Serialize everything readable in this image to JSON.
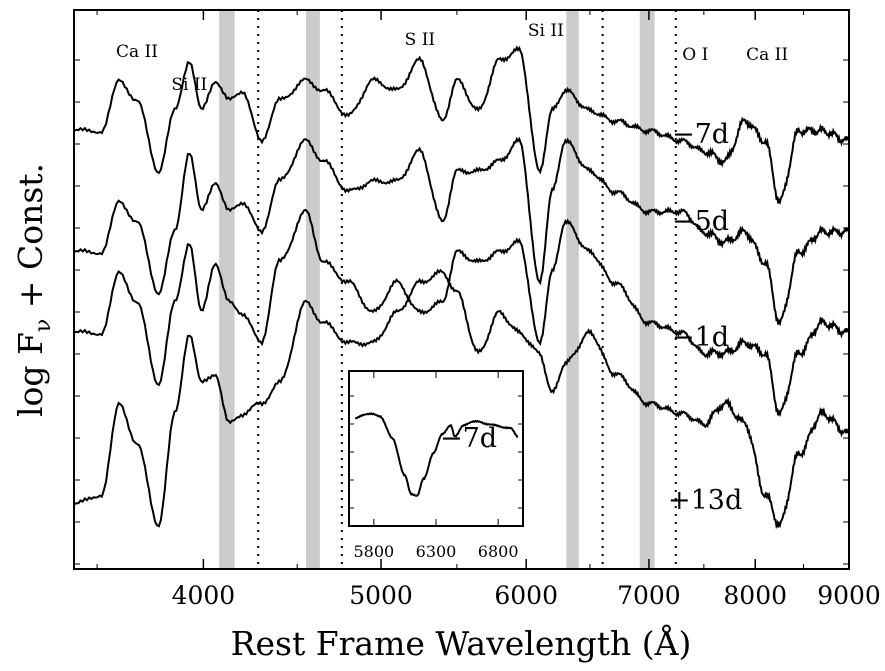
{
  "chart_data": {
    "type": "line",
    "xlabel": "Rest Frame Wavelength (Å)",
    "ylabel": "log F",
    "ylabel_subscript": "ν",
    "ylabel_suffix": " + Const.",
    "xlim": [
      3400,
      9000
    ],
    "xscale": "log",
    "xticks": [
      {
        "value": 4000,
        "label": "4000"
      },
      {
        "value": 5000,
        "label": "5000"
      },
      {
        "value": 6000,
        "label": "6000"
      },
      {
        "value": 7000,
        "label": "7000"
      },
      {
        "value": 8000,
        "label": "8000"
      },
      {
        "value": 9000,
        "label": "9000"
      }
    ],
    "grey_bands": [
      [
        4080,
        4160
      ],
      [
        4550,
        4630
      ],
      [
        6310,
        6410
      ],
      [
        6920,
        7050
      ]
    ],
    "dotted_lines": [
      4285,
      4760,
      6605,
      7240
    ],
    "ion_labels": [
      {
        "text": "Ca II",
        "wavelength": 3680
      },
      {
        "text": "Si II",
        "wavelength": 3930
      },
      {
        "text": "S II",
        "wavelength": 5250
      },
      {
        "text": "Si II",
        "wavelength": 6150
      },
      {
        "text": "O I",
        "wavelength": 7420
      },
      {
        "text": "Ca II",
        "wavelength": 8120
      }
    ],
    "series": [
      {
        "label": "−7d",
        "anchors": [
          [
            3400,
            0.82
          ],
          [
            3520,
            0.82
          ],
          [
            3600,
            0.92
          ],
          [
            3680,
            0.88
          ],
          [
            3780,
            0.74
          ],
          [
            3860,
            0.86
          ],
          [
            3930,
            0.96
          ],
          [
            3990,
            0.86
          ],
          [
            4060,
            0.92
          ],
          [
            4130,
            0.88
          ],
          [
            4200,
            0.9
          ],
          [
            4300,
            0.8
          ],
          [
            4400,
            0.88
          ],
          [
            4550,
            0.92
          ],
          [
            4650,
            0.9
          ],
          [
            4800,
            0.85
          ],
          [
            4950,
            0.92
          ],
          [
            5100,
            0.9
          ],
          [
            5250,
            0.96
          ],
          [
            5400,
            0.84
          ],
          [
            5500,
            0.92
          ],
          [
            5650,
            0.86
          ],
          [
            5800,
            0.96
          ],
          [
            5950,
            0.98
          ],
          [
            6100,
            0.74
          ],
          [
            6200,
            0.86
          ],
          [
            6300,
            0.9
          ],
          [
            6500,
            0.86
          ],
          [
            6700,
            0.84
          ],
          [
            7000,
            0.82
          ],
          [
            7300,
            0.8
          ],
          [
            7500,
            0.78
          ],
          [
            7700,
            0.76
          ],
          [
            7900,
            0.84
          ],
          [
            8100,
            0.8
          ],
          [
            8250,
            0.68
          ],
          [
            8450,
            0.82
          ],
          [
            8700,
            0.82
          ],
          [
            9000,
            0.8
          ]
        ]
      },
      {
        "label": "−5d",
        "anchors": [
          [
            3400,
            0.58
          ],
          [
            3520,
            0.58
          ],
          [
            3600,
            0.68
          ],
          [
            3680,
            0.64
          ],
          [
            3780,
            0.5
          ],
          [
            3860,
            0.62
          ],
          [
            3930,
            0.78
          ],
          [
            3990,
            0.66
          ],
          [
            4060,
            0.72
          ],
          [
            4130,
            0.66
          ],
          [
            4200,
            0.68
          ],
          [
            4300,
            0.62
          ],
          [
            4400,
            0.72
          ],
          [
            4550,
            0.8
          ],
          [
            4650,
            0.76
          ],
          [
            4800,
            0.7
          ],
          [
            4950,
            0.72
          ],
          [
            5100,
            0.72
          ],
          [
            5250,
            0.78
          ],
          [
            5400,
            0.64
          ],
          [
            5500,
            0.74
          ],
          [
            5650,
            0.74
          ],
          [
            5800,
            0.76
          ],
          [
            5950,
            0.8
          ],
          [
            6100,
            0.52
          ],
          [
            6200,
            0.7
          ],
          [
            6300,
            0.8
          ],
          [
            6500,
            0.74
          ],
          [
            6700,
            0.7
          ],
          [
            7000,
            0.66
          ],
          [
            7300,
            0.66
          ],
          [
            7500,
            0.62
          ],
          [
            7700,
            0.6
          ],
          [
            7900,
            0.62
          ],
          [
            8100,
            0.56
          ],
          [
            8250,
            0.44
          ],
          [
            8450,
            0.58
          ],
          [
            8700,
            0.62
          ],
          [
            9000,
            0.62
          ]
        ]
      },
      {
        "label": "−1d",
        "anchors": [
          [
            3400,
            0.42
          ],
          [
            3520,
            0.42
          ],
          [
            3600,
            0.54
          ],
          [
            3680,
            0.48
          ],
          [
            3780,
            0.32
          ],
          [
            3860,
            0.48
          ],
          [
            3930,
            0.6
          ],
          [
            3990,
            0.46
          ],
          [
            4060,
            0.56
          ],
          [
            4130,
            0.48
          ],
          [
            4200,
            0.46
          ],
          [
            4300,
            0.4
          ],
          [
            4400,
            0.56
          ],
          [
            4550,
            0.66
          ],
          [
            4650,
            0.56
          ],
          [
            4800,
            0.52
          ],
          [
            4950,
            0.46
          ],
          [
            5100,
            0.52
          ],
          [
            5250,
            0.46
          ],
          [
            5400,
            0.48
          ],
          [
            5500,
            0.58
          ],
          [
            5650,
            0.56
          ],
          [
            5800,
            0.58
          ],
          [
            5950,
            0.6
          ],
          [
            6100,
            0.4
          ],
          [
            6200,
            0.54
          ],
          [
            6300,
            0.64
          ],
          [
            6500,
            0.58
          ],
          [
            6700,
            0.52
          ],
          [
            7000,
            0.44
          ],
          [
            7300,
            0.42
          ],
          [
            7500,
            0.38
          ],
          [
            7700,
            0.38
          ],
          [
            7900,
            0.4
          ],
          [
            8100,
            0.38
          ],
          [
            8250,
            0.26
          ],
          [
            8450,
            0.38
          ],
          [
            8700,
            0.44
          ],
          [
            9000,
            0.42
          ]
        ]
      },
      {
        "label": "+13d",
        "anchors": [
          [
            3400,
            0.08
          ],
          [
            3520,
            0.1
          ],
          [
            3600,
            0.28
          ],
          [
            3680,
            0.2
          ],
          [
            3780,
            0.04
          ],
          [
            3860,
            0.26
          ],
          [
            3930,
            0.42
          ],
          [
            3990,
            0.32
          ],
          [
            4060,
            0.34
          ],
          [
            4130,
            0.24
          ],
          [
            4200,
            0.26
          ],
          [
            4300,
            0.28
          ],
          [
            4400,
            0.32
          ],
          [
            4550,
            0.48
          ],
          [
            4650,
            0.44
          ],
          [
            4800,
            0.4
          ],
          [
            4950,
            0.4
          ],
          [
            5100,
            0.46
          ],
          [
            5250,
            0.52
          ],
          [
            5400,
            0.54
          ],
          [
            5500,
            0.5
          ],
          [
            5650,
            0.38
          ],
          [
            5800,
            0.46
          ],
          [
            5950,
            0.42
          ],
          [
            6100,
            0.38
          ],
          [
            6200,
            0.3
          ],
          [
            6300,
            0.36
          ],
          [
            6500,
            0.42
          ],
          [
            6700,
            0.34
          ],
          [
            7000,
            0.28
          ],
          [
            7300,
            0.26
          ],
          [
            7500,
            0.24
          ],
          [
            7700,
            0.28
          ],
          [
            7900,
            0.24
          ],
          [
            8100,
            0.1
          ],
          [
            8250,
            0.04
          ],
          [
            8450,
            0.18
          ],
          [
            8700,
            0.26
          ],
          [
            9000,
            0.22
          ]
        ]
      }
    ],
    "inset": {
      "label": "−7d",
      "xlim": [
        5600,
        7000
      ],
      "xticks": [
        {
          "value": 5800,
          "label": "5800"
        },
        {
          "value": 6300,
          "label": "6300"
        },
        {
          "value": 6800,
          "label": "6800"
        }
      ],
      "anchors": [
        [
          5650,
          0.78
        ],
        [
          5750,
          0.82
        ],
        [
          5850,
          0.8
        ],
        [
          5950,
          0.62
        ],
        [
          6050,
          0.32
        ],
        [
          6100,
          0.18
        ],
        [
          6150,
          0.16
        ],
        [
          6200,
          0.3
        ],
        [
          6280,
          0.5
        ],
        [
          6350,
          0.66
        ],
        [
          6420,
          0.72
        ],
        [
          6450,
          0.64
        ],
        [
          6520,
          0.72
        ],
        [
          6600,
          0.76
        ],
        [
          6700,
          0.74
        ],
        [
          6800,
          0.72
        ],
        [
          6900,
          0.7
        ],
        [
          6960,
          0.64
        ]
      ]
    }
  }
}
